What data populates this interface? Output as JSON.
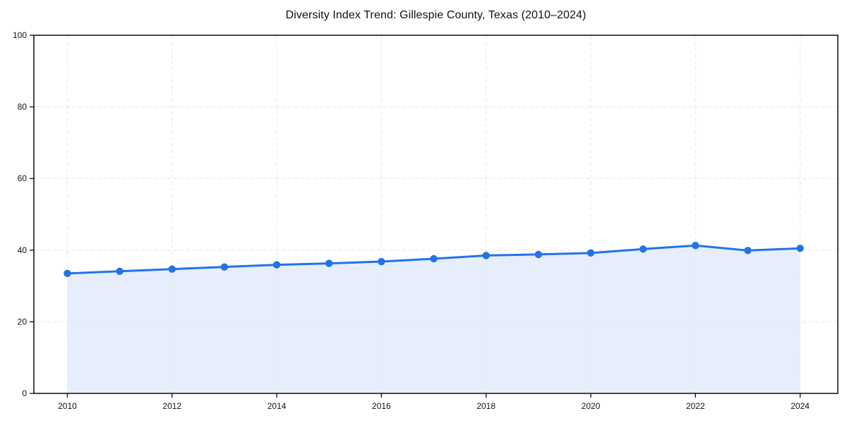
{
  "title": "Diversity Index Trend: Gillespie County, Texas (2010–2024)",
  "chart_data": {
    "type": "area",
    "title": "Diversity Index Trend: Gillespie County, Texas (2010–2024)",
    "xlabel": "",
    "ylabel": "",
    "x": [
      2010,
      2011,
      2012,
      2013,
      2014,
      2015,
      2016,
      2017,
      2018,
      2019,
      2020,
      2021,
      2022,
      2023,
      2024
    ],
    "series": [
      {
        "name": "Diversity Index",
        "values": [
          33.5,
          34.1,
          34.7,
          35.3,
          35.9,
          36.3,
          36.8,
          37.6,
          38.5,
          38.8,
          39.2,
          40.3,
          41.3,
          39.9,
          40.5
        ]
      }
    ],
    "xlim": [
      2009.36,
      2024.72
    ],
    "ylim": [
      0,
      100
    ],
    "xticks": [
      2010,
      2012,
      2014,
      2016,
      2018,
      2020,
      2022,
      2024
    ],
    "yticks": [
      0,
      20,
      40,
      60,
      80,
      100
    ],
    "grid": "dashed",
    "legend": "none",
    "colors": {
      "line": "#2273e8",
      "marker": "#2273e8",
      "fill": "#e7eefb",
      "gridline": "#e6e6e6",
      "spine": "#1a1a1a",
      "tick_text": "#111111",
      "background": "#ffffff"
    }
  }
}
